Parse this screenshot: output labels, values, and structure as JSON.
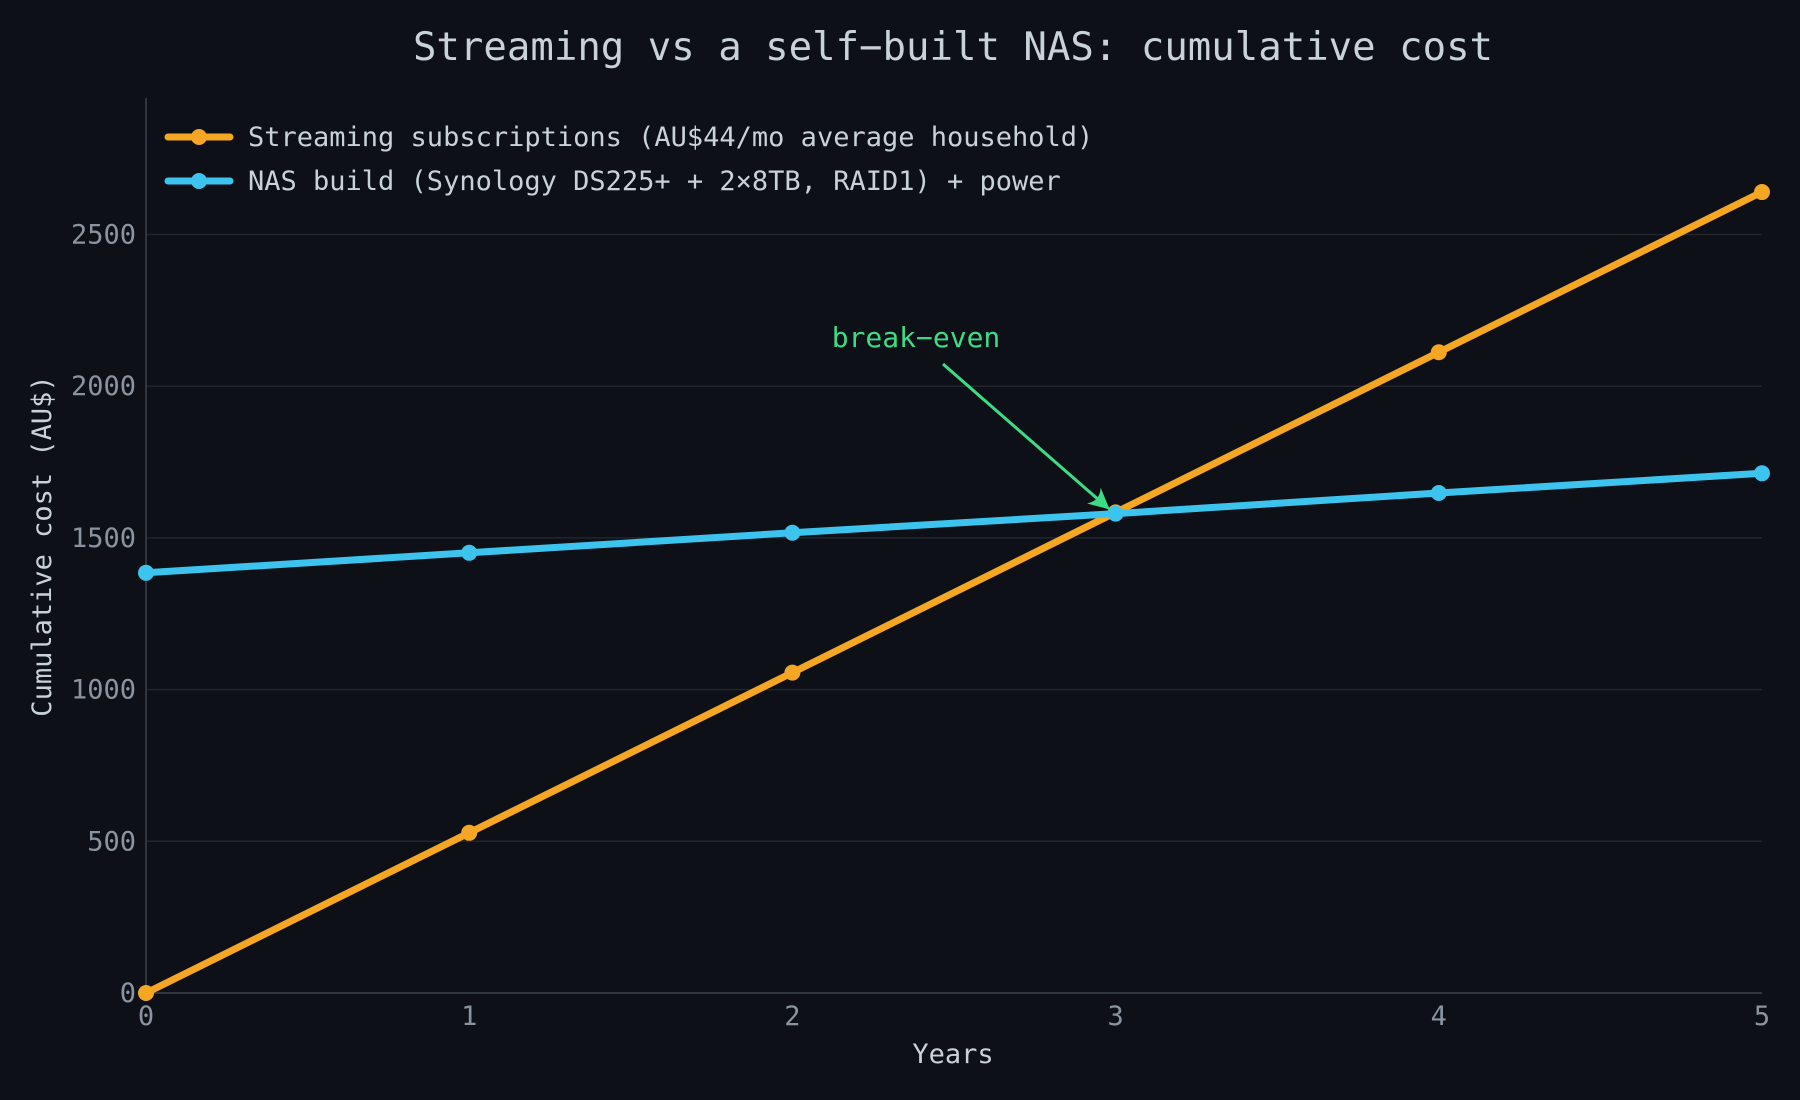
{
  "chart_data": {
    "type": "line",
    "title": "Streaming vs a self−built NAS: cumulative cost",
    "xlabel": "Years",
    "ylabel": "Cumulative cost (AU$)",
    "x": [
      0,
      1,
      2,
      3,
      4,
      5
    ],
    "xlim": [
      0,
      5
    ],
    "ylim": [
      0,
      2950
    ],
    "x_ticks": [
      "0",
      "1",
      "2",
      "3",
      "4",
      "5"
    ],
    "y_ticks": [
      0,
      500,
      1000,
      1500,
      2000,
      2500
    ],
    "grid": "horizontal",
    "legend_position": "top-left",
    "series": [
      {
        "name": "Streaming subscriptions (AU$44/mo average household)",
        "color": "#f5a623",
        "values": [
          0,
          528,
          1056,
          1584,
          2112,
          2640
        ]
      },
      {
        "name": "NAS build (Synology DS225+ + 2×8TB, RAID1) + power",
        "color": "#3cc4ee",
        "values": [
          1385,
          1451,
          1517,
          1580,
          1648,
          1713
        ]
      }
    ],
    "annotation": {
      "text": "break−even",
      "color": "#3ddc84",
      "x": 3,
      "y": 1580
    }
  }
}
